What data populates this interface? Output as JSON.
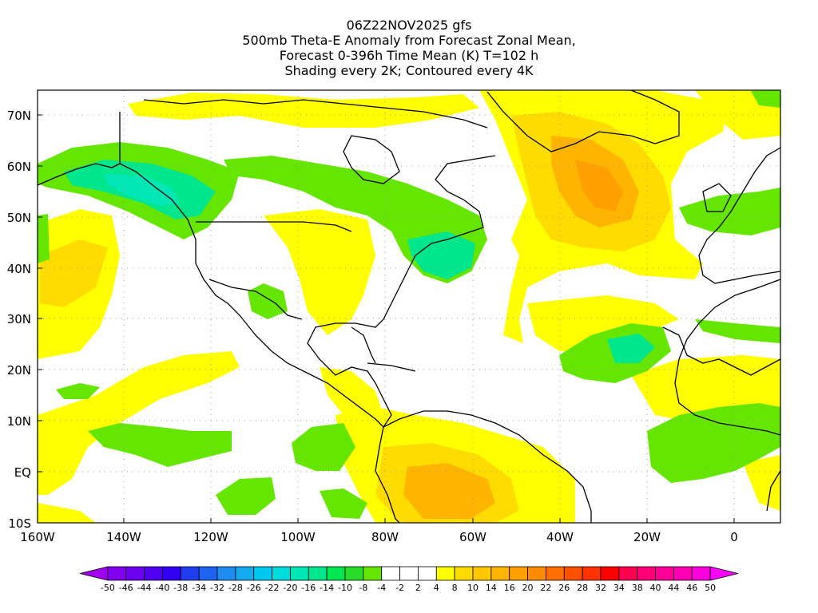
{
  "titles": {
    "line1": "06Z22NOV2025 gfs",
    "line2": "500mb Theta-E Anomaly from Forecast Zonal Mean,",
    "line3": "Forecast 0-396h Time Mean (K) T=102 h",
    "line4": "Shading every 2K; Contoured every 4K"
  },
  "lat_labels": [
    "70N",
    "60N",
    "50N",
    "40N",
    "30N",
    "20N",
    "10N",
    "EQ",
    "10S"
  ],
  "lon_labels": [
    "160W",
    "140W",
    "120W",
    "100W",
    "80W",
    "60W",
    "40W",
    "20W",
    "0"
  ],
  "colorbar": {
    "labels": [
      "-50",
      "-46",
      "-44",
      "-40",
      "-38",
      "-34",
      "-32",
      "-28",
      "-26",
      "-22",
      "-20",
      "-16",
      "-14",
      "-10",
      "-8",
      "-4",
      "-2",
      "2",
      "4",
      "8",
      "10",
      "14",
      "16",
      "20",
      "22",
      "26",
      "28",
      "32",
      "34",
      "38",
      "40",
      "44",
      "46",
      "50"
    ],
    "colors": [
      "#a000f0",
      "#8200f0",
      "#6e00f0",
      "#5000f0",
      "#3200f0",
      "#1e3cf0",
      "#1e64f0",
      "#1e8cf0",
      "#14aaf0",
      "#00c8f0",
      "#00dcdc",
      "#00e6b4",
      "#00e68c",
      "#00e650",
      "#28dc28",
      "#64e600",
      "#ffffff",
      "#ffffff",
      "#ffffff",
      "#ffff00",
      "#ffdc00",
      "#ffc800",
      "#ffb400",
      "#ffa000",
      "#ff8c00",
      "#ff6e00",
      "#ff5000",
      "#ff3200",
      "#ff0000",
      "#ff0050",
      "#ff0078",
      "#ff0096",
      "#ff00b4",
      "#ff00dc",
      "#ff00ff"
    ]
  },
  "map_colors": {
    "light_yellow": "#ffff00",
    "gold": "#ffdc00",
    "orange": "#ffb400",
    "dark_orange": "#ffa000",
    "green": "#64e600",
    "teal_green": "#00e68c",
    "cyan_green": "#00e6b4",
    "coast": "#000000",
    "grid": "#999999"
  }
}
